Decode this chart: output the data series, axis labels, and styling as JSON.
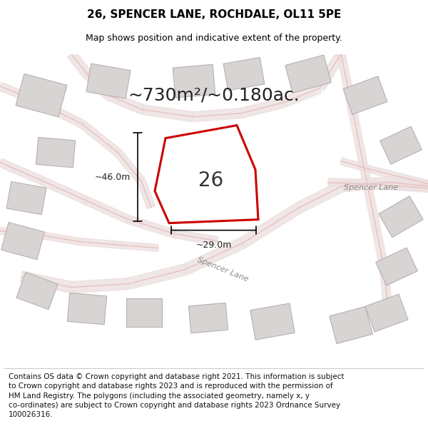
{
  "title": "26, SPENCER LANE, ROCHDALE, OL11 5PE",
  "subtitle": "Map shows position and indicative extent of the property.",
  "footer_text": "Contains OS data © Crown copyright and database right 2021. This information is subject\nto Crown copyright and database rights 2023 and is reproduced with the permission of\nHM Land Registry. The polygons (including the associated geometry, namely x, y\nco-ordinates) are subject to Crown copyright and database rights 2023 Ordnance Survey\n100026316.",
  "map_bg": "#f2efef",
  "road_color": "#e8c0c0",
  "road_fill": "#ede0e0",
  "building_fill": "#d8d4d4",
  "building_edge": "#b8b0b0",
  "plot_color": "#cc0000",
  "plot_fill": "#ffffff",
  "area_text": "~730m²/~0.180ac.",
  "number_text": "26",
  "dim_width": "~29.0m",
  "dim_height": "~46.0m",
  "spencer_lane_label1": "Spencer Lane",
  "spencer_lane_label2": "Spencer Lane",
  "footer_fontsize": 7.5,
  "title_fontsize": 11,
  "subtitle_fontsize": 9,
  "area_fontsize": 18,
  "number_fontsize": 20,
  "dim_fontsize": 9
}
